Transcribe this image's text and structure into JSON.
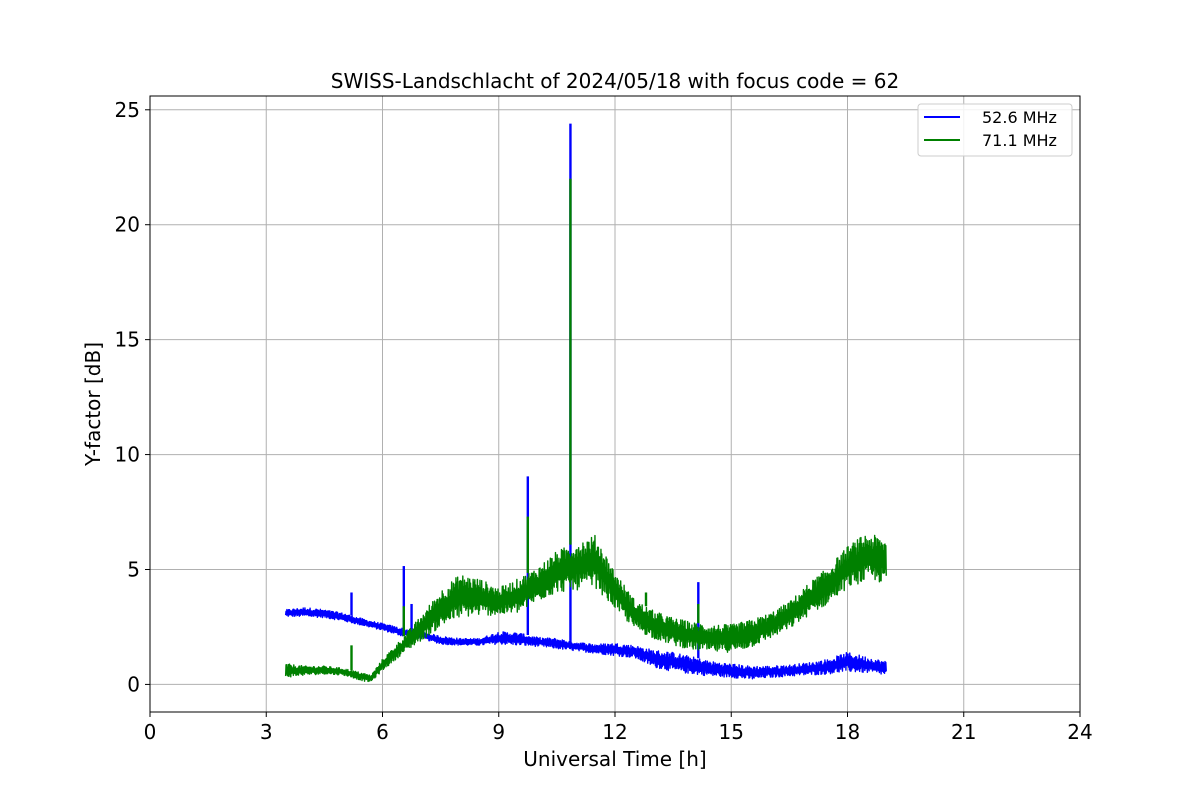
{
  "chart_data": {
    "type": "line",
    "title": "SWISS-Landschlacht of 2024/05/18 with focus code = 62",
    "xlabel": "Universal Time [h]",
    "ylabel": "Y-factor [dB]",
    "xlim": [
      0,
      24
    ],
    "ylim": [
      -1.2,
      25.6
    ],
    "xticks": [
      0,
      3,
      6,
      9,
      12,
      15,
      18,
      21,
      24
    ],
    "yticks": [
      0,
      5,
      10,
      15,
      20,
      25
    ],
    "grid": true,
    "legend_position": "top-right",
    "series": [
      {
        "name": "52.6 MHz",
        "color": "#0000ff",
        "x": [
          3.5,
          4.0,
          4.5,
          5.0,
          5.5,
          6.0,
          6.5,
          7.0,
          7.5,
          8.0,
          8.5,
          9.0,
          9.5,
          10.0,
          10.5,
          11.0,
          11.5,
          12.0,
          12.5,
          13.0,
          13.5,
          14.0,
          14.5,
          15.0,
          15.5,
          16.0,
          16.5,
          17.0,
          17.5,
          18.0,
          18.5,
          19.0
        ],
        "y_low": [
          2.95,
          2.95,
          2.9,
          2.75,
          2.55,
          2.35,
          2.1,
          2.0,
          1.75,
          1.7,
          1.7,
          1.75,
          1.7,
          1.65,
          1.55,
          1.45,
          1.35,
          1.25,
          1.15,
          0.75,
          0.55,
          0.45,
          0.35,
          0.3,
          0.2,
          0.3,
          0.35,
          0.4,
          0.45,
          0.55,
          0.5,
          0.4
        ],
        "y_high": [
          3.25,
          3.35,
          3.25,
          3.1,
          2.85,
          2.65,
          2.45,
          2.3,
          2.1,
          2.0,
          2.0,
          2.3,
          2.25,
          2.05,
          2.0,
          1.85,
          1.75,
          1.8,
          1.7,
          1.5,
          1.4,
          1.2,
          1.0,
          0.9,
          0.8,
          0.8,
          0.85,
          0.95,
          1.1,
          1.4,
          1.2,
          1.0
        ],
        "spikes": [
          [
            5.2,
            4.0
          ],
          [
            6.55,
            5.15
          ],
          [
            6.75,
            3.5
          ],
          [
            9.75,
            9.05
          ],
          [
            10.85,
            24.4
          ],
          [
            14.15,
            4.45
          ]
        ]
      },
      {
        "name": "71.1 MHz",
        "color": "#008000",
        "x": [
          3.5,
          4.0,
          4.5,
          5.0,
          5.5,
          5.7,
          6.0,
          6.5,
          7.0,
          7.5,
          8.0,
          8.5,
          9.0,
          9.5,
          10.0,
          10.5,
          11.0,
          11.5,
          12.0,
          12.5,
          13.0,
          13.5,
          14.0,
          14.5,
          15.0,
          15.5,
          16.0,
          16.5,
          17.0,
          17.5,
          18.0,
          18.5,
          19.0
        ],
        "y_low": [
          0.3,
          0.4,
          0.45,
          0.4,
          0.15,
          0.1,
          0.6,
          1.3,
          1.9,
          2.5,
          2.9,
          3.0,
          3.0,
          3.1,
          3.6,
          4.0,
          4.1,
          4.2,
          3.3,
          2.4,
          2.0,
          1.7,
          1.5,
          1.4,
          1.4,
          1.6,
          2.0,
          2.4,
          3.0,
          3.5,
          4.2,
          4.5,
          4.4
        ],
        "y_high": [
          0.9,
          0.8,
          0.8,
          0.7,
          0.5,
          0.4,
          1.1,
          2.0,
          3.0,
          4.1,
          4.8,
          4.6,
          4.2,
          4.6,
          5.1,
          5.8,
          6.2,
          6.5,
          4.9,
          3.7,
          3.2,
          2.9,
          2.7,
          2.6,
          2.6,
          2.8,
          3.1,
          3.6,
          4.4,
          5.1,
          6.0,
          6.6,
          6.3
        ],
        "spikes": [
          [
            5.2,
            1.7
          ],
          [
            6.55,
            3.4
          ],
          [
            9.75,
            7.3
          ],
          [
            10.85,
            22.0
          ],
          [
            12.8,
            4.0
          ],
          [
            14.15,
            3.5
          ]
        ]
      }
    ]
  }
}
